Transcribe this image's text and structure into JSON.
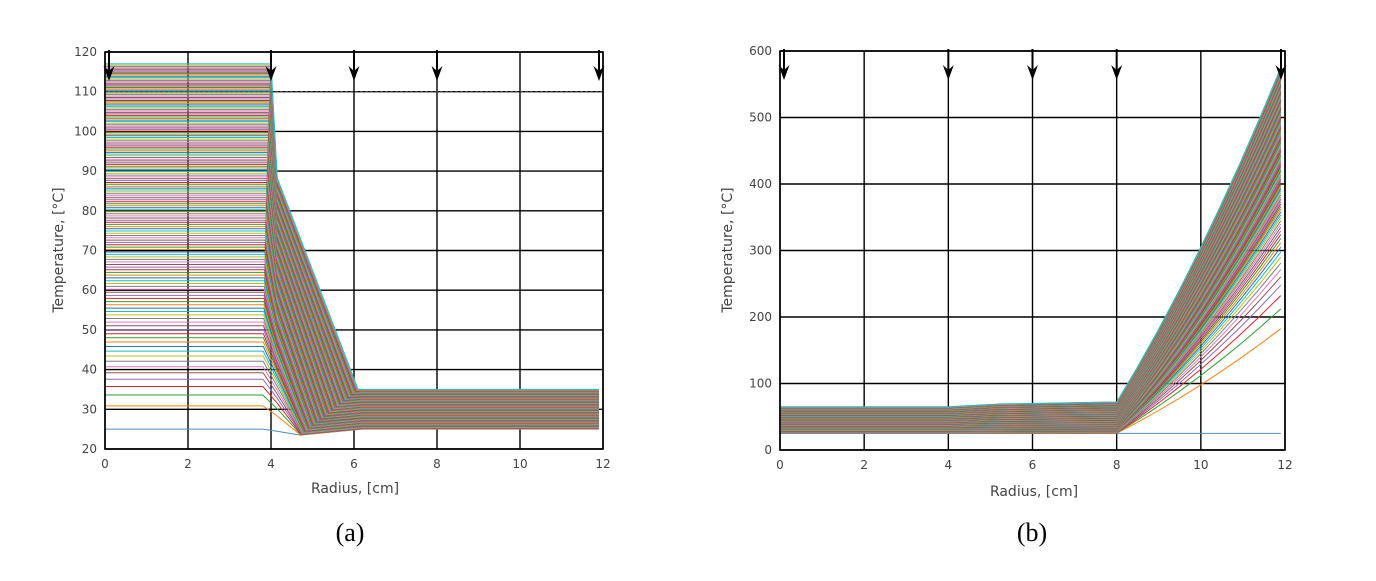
{
  "chart_data": [
    {
      "type": "line",
      "panel_label": "(a)",
      "xlabel": "Radius, [cm]",
      "ylabel": "Temperature, [°C]",
      "xlim": [
        0,
        12
      ],
      "ylim": [
        20,
        120
      ],
      "xticks": [
        0,
        2,
        4,
        6,
        8,
        10,
        12
      ],
      "yticks": [
        20,
        30,
        40,
        50,
        60,
        70,
        80,
        90,
        100,
        110,
        120
      ],
      "grid": true,
      "arrows_at_x": [
        0,
        4,
        6,
        8,
        12
      ],
      "series_count": 150,
      "series_shape": {
        "inner_plateau_x": [
          0,
          3.8
        ],
        "transition_x": [
          4,
          6
        ],
        "outer_plateau_x": [
          6,
          11.9
        ],
        "inner_temperature_range": [
          25,
          117
        ],
        "outer_temperature_range": [
          25,
          35
        ],
        "bottom_baseline": 25
      },
      "dashed_reference_y": 110
    },
    {
      "type": "line",
      "panel_label": "(b)",
      "xlabel": "Radius, [cm]",
      "ylabel": "Temperature, [°C]",
      "xlim": [
        0,
        12
      ],
      "ylim": [
        0,
        600
      ],
      "xticks": [
        0,
        2,
        4,
        6,
        8,
        10,
        12
      ],
      "yticks": [
        0,
        100,
        200,
        300,
        400,
        500,
        600
      ],
      "grid": true,
      "arrows_at_x": [
        0,
        4,
        6,
        8,
        12
      ],
      "series_count": 150,
      "series_shape": {
        "inner_band_x": [
          0,
          8
        ],
        "inner_temperature_range": [
          25,
          65
        ],
        "mid_temperature_range": [
          25,
          72
        ],
        "rise_x": [
          8,
          11.9
        ],
        "outer_edge_temperature_range": [
          25,
          575
        ],
        "bottom_baseline": 25
      }
    }
  ],
  "colors": {
    "palette": [
      "#1f77b4",
      "#ff7f0e",
      "#2ca02c",
      "#d62728",
      "#9467bd",
      "#8c564b",
      "#e377c2",
      "#7f7f7f",
      "#bcbd22",
      "#17becf"
    ],
    "grid": "#000000",
    "arrow": "#000000",
    "baseline": "#4c8fc6"
  }
}
